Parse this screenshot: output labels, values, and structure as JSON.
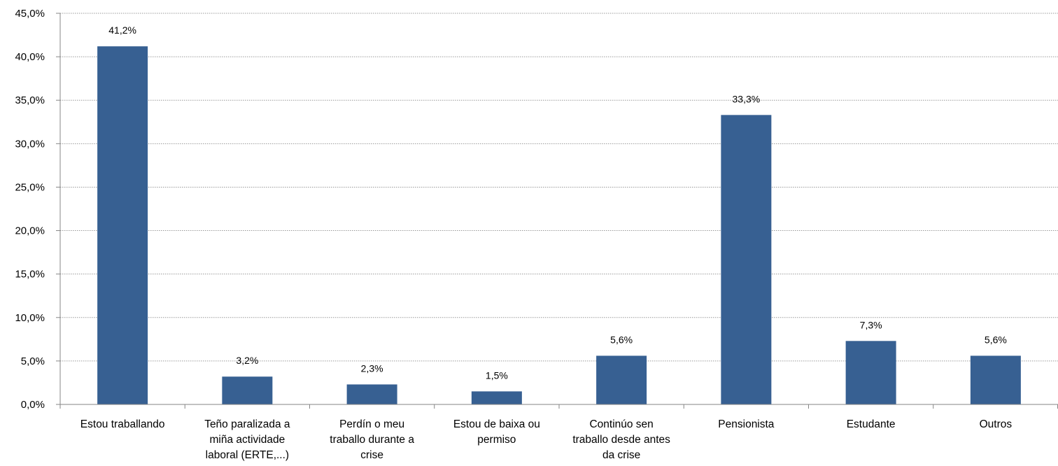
{
  "chart_data": {
    "type": "bar",
    "title": "",
    "xlabel": "",
    "ylabel": "",
    "ylim": [
      0,
      45
    ],
    "yticks": [
      "0,0%",
      "5,0%",
      "10,0%",
      "15,0%",
      "20,0%",
      "25,0%",
      "30,0%",
      "35,0%",
      "40,0%",
      "45,0%"
    ],
    "grid": true,
    "bar_color": "#376092",
    "categories": [
      [
        "Estou traballando"
      ],
      [
        "Teño paralizada a",
        "miña actividade",
        "laboral (ERTE,...)"
      ],
      [
        "Perdín o meu",
        "traballo durante a",
        "crise"
      ],
      [
        "Estou de baixa ou",
        "permiso"
      ],
      [
        "Continúo sen",
        "traballo desde antes",
        "da crise"
      ],
      [
        "Pensionista"
      ],
      [
        "Estudante"
      ],
      [
        "Outros"
      ]
    ],
    "values": [
      41.2,
      3.2,
      2.3,
      1.5,
      5.6,
      33.3,
      7.3,
      5.6
    ],
    "data_labels": [
      "41,2%",
      "3,2%",
      "2,3%",
      "1,5%",
      "5,6%",
      "33,3%",
      "7,3%",
      "5,6%"
    ]
  }
}
